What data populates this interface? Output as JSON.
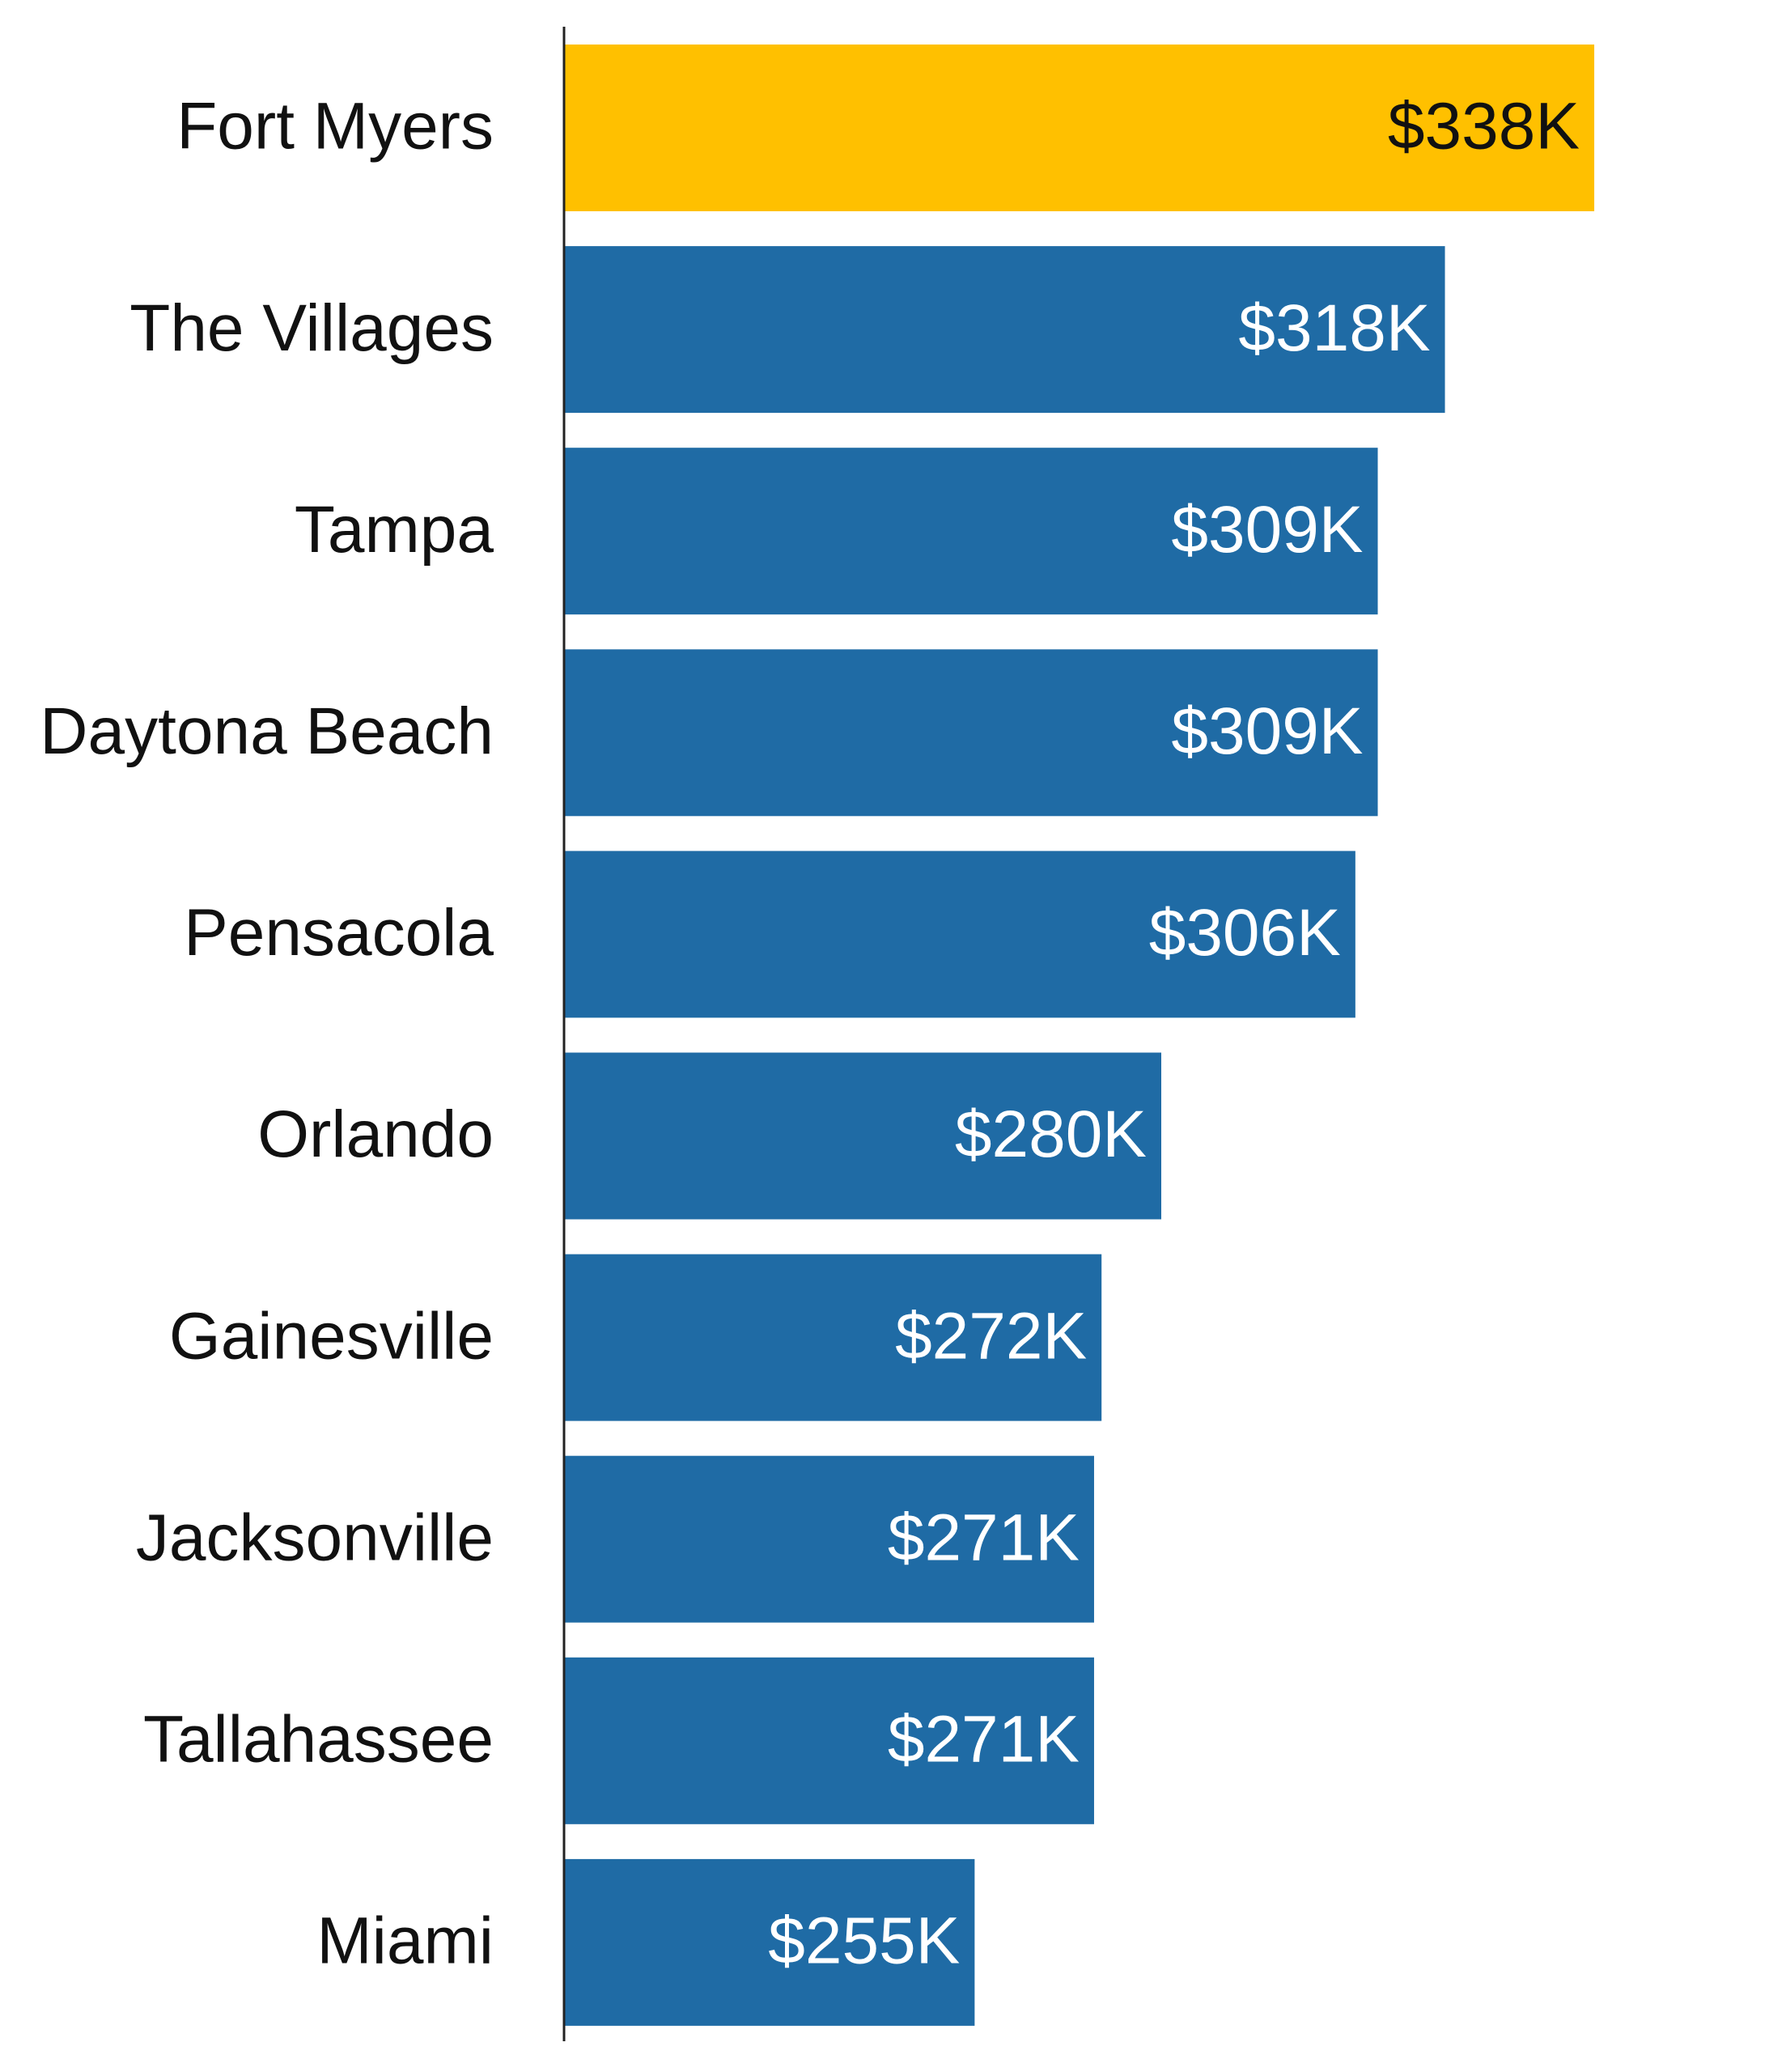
{
  "chart_data": {
    "type": "barh",
    "categories": [
      "Fort Myers",
      "The Villages",
      "Tampa",
      "Daytona Beach",
      "Pensacola",
      "Orlando",
      "Gainesville",
      "Jacksonville",
      "Tallahassee",
      "Miami"
    ],
    "values": [
      338000,
      318000,
      309000,
      309000,
      306000,
      280000,
      272000,
      271000,
      271000,
      255000
    ],
    "value_labels": [
      "$338K",
      "$318K",
      "$309K",
      "$309K",
      "$306K",
      "$280K",
      "$272K",
      "$271K",
      "$271K",
      "$255K"
    ],
    "colors": [
      "#ffc000",
      "#1f6ba5",
      "#1f6ba5",
      "#1f6ba5",
      "#1f6ba5",
      "#1f6ba5",
      "#1f6ba5",
      "#1f6ba5",
      "#1f6ba5",
      "#1f6ba5"
    ],
    "xlim": [
      200000,
      360000
    ]
  }
}
